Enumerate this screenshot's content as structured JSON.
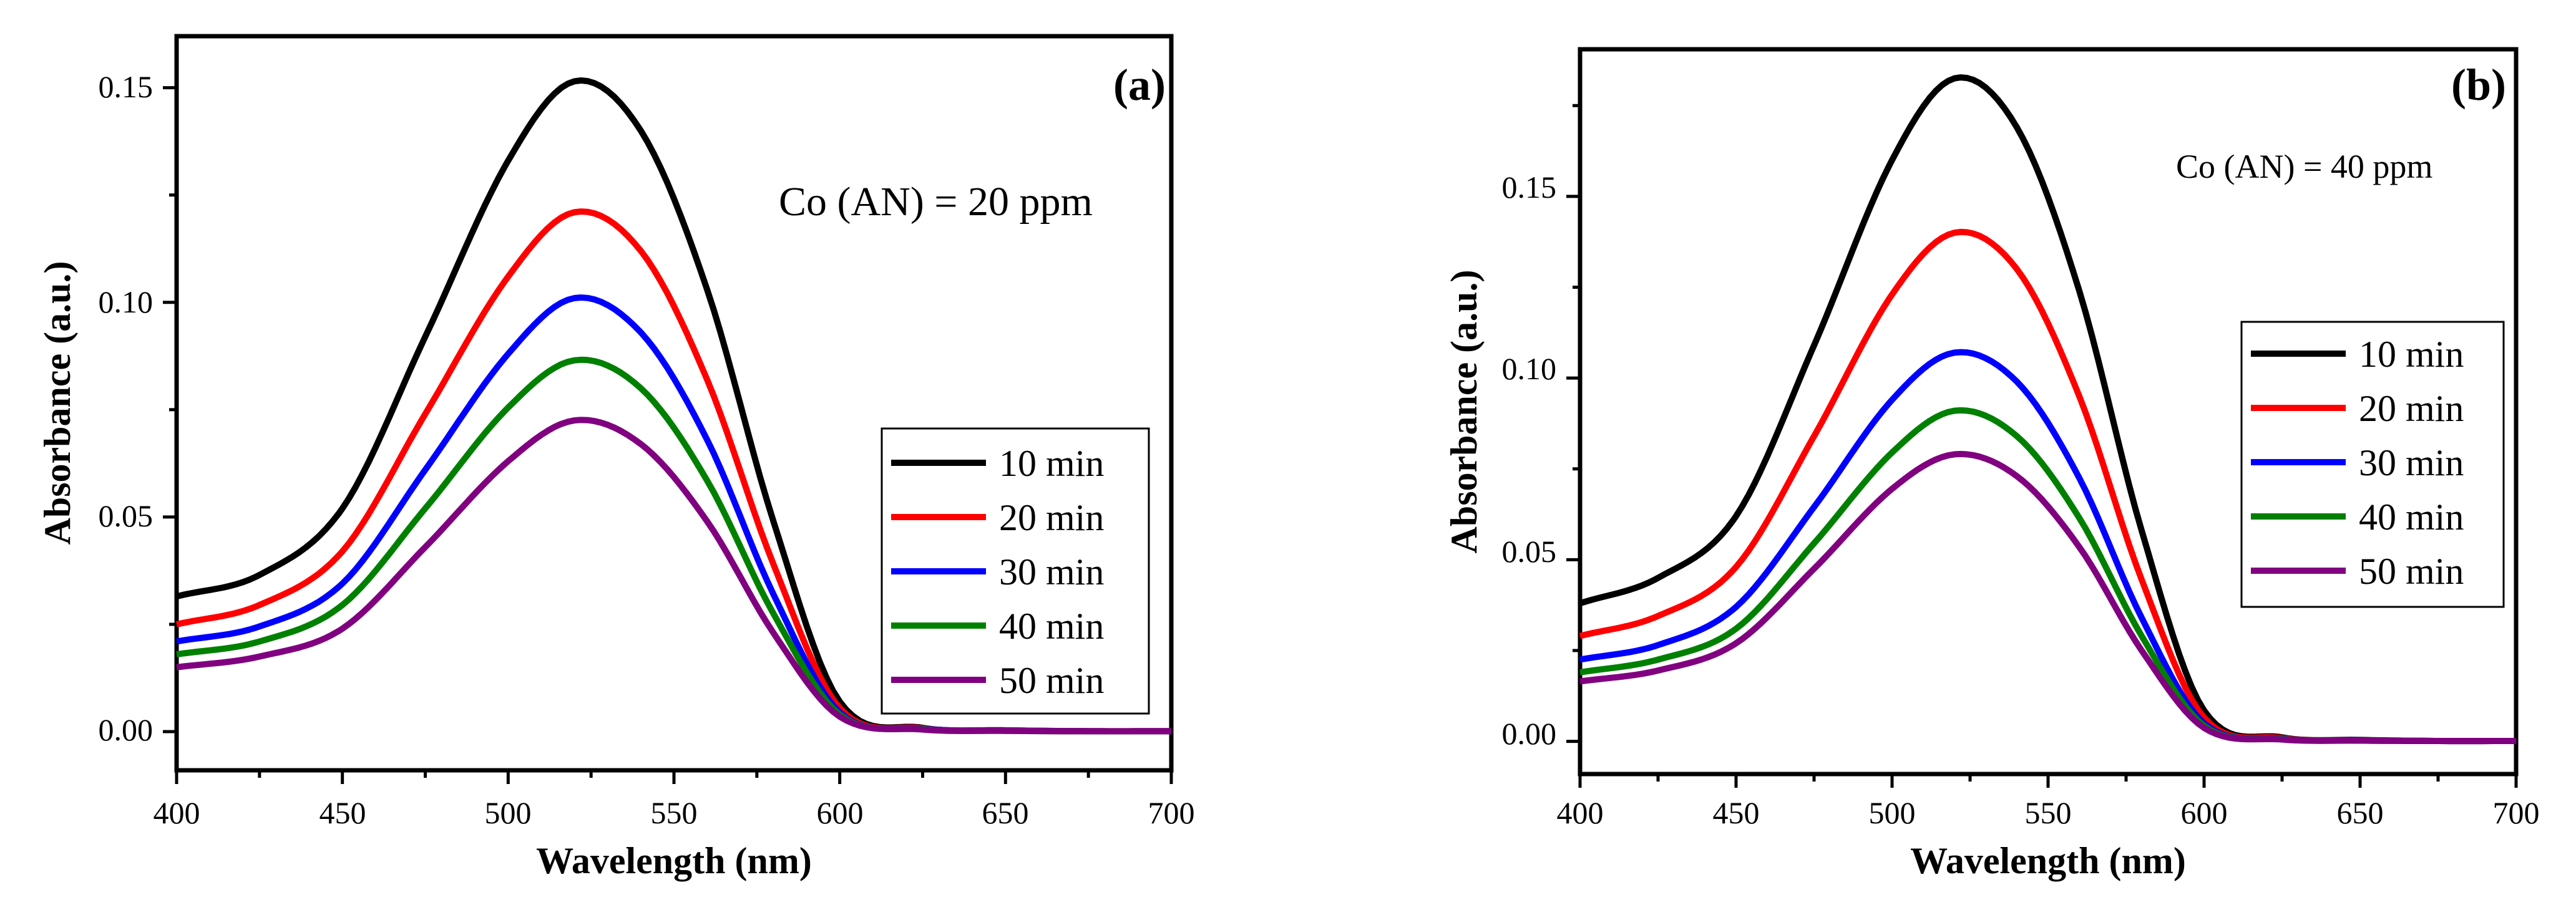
{
  "chart_data": [
    {
      "type": "line",
      "panel_label": "(a)",
      "annotation": "Co (AN) = 20 ppm",
      "xlabel": "Wavelength (nm)",
      "ylabel": "Absorbance (a.u.)",
      "xlim": [
        400,
        700
      ],
      "ylim": [
        -0.009,
        0.162
      ],
      "xticks": [
        "400",
        "450",
        "500",
        "550",
        "600",
        "650",
        "700"
      ],
      "yticks": [
        "0.00",
        "0.05",
        "0.10",
        "0.15"
      ],
      "legend_position": "right",
      "x": [
        400,
        425,
        450,
        475,
        500,
        520,
        540,
        560,
        580,
        600,
        625,
        650,
        675,
        700
      ],
      "series": [
        {
          "name": "10 min",
          "color": "#000000",
          "values": [
            0.0315,
            0.0365,
            0.052,
            0.092,
            0.133,
            0.1515,
            0.14,
            0.103,
            0.049,
            0.007,
            0.0009,
            0.0003,
            0.0001,
            0.0001
          ]
        },
        {
          "name": "20 min",
          "color": "#ff0000",
          "values": [
            0.025,
            0.0295,
            0.042,
            0.074,
            0.106,
            0.121,
            0.112,
            0.082,
            0.039,
            0.0055,
            0.0008,
            0.0003,
            0.0001,
            0.0001
          ]
        },
        {
          "name": "30 min",
          "color": "#0000ff",
          "values": [
            0.021,
            0.0245,
            0.0345,
            0.061,
            0.088,
            0.101,
            0.093,
            0.068,
            0.032,
            0.0045,
            0.0007,
            0.0003,
            0.0001,
            0.0001
          ]
        },
        {
          "name": "40 min",
          "color": "#008000",
          "values": [
            0.018,
            0.021,
            0.0295,
            0.052,
            0.0755,
            0.0865,
            0.08,
            0.0585,
            0.0275,
            0.004,
            0.0006,
            0.0002,
            0.0001,
            0.0001
          ]
        },
        {
          "name": "50 min",
          "color": "#800080",
          "values": [
            0.015,
            0.0175,
            0.024,
            0.043,
            0.063,
            0.0725,
            0.067,
            0.049,
            0.023,
            0.0035,
            0.0005,
            0.0002,
            0.0001,
            0.0001
          ]
        }
      ]
    },
    {
      "type": "line",
      "panel_label": "(b)",
      "annotation": "Co (AN) = 40 ppm",
      "xlabel": "Wavelength (nm)",
      "ylabel": "Absorbance (a.u.)",
      "xlim": [
        400,
        700
      ],
      "ylim": [
        -0.009,
        0.1905
      ],
      "xticks": [
        "400",
        "450",
        "500",
        "550",
        "600",
        "650",
        "700"
      ],
      "yticks": [
        "0.00",
        "0.05",
        "0.10",
        "0.15"
      ],
      "legend_position": "right",
      "x": [
        400,
        425,
        450,
        475,
        500,
        520,
        540,
        560,
        580,
        600,
        625,
        650,
        675,
        700
      ],
      "series": [
        {
          "name": "10 min",
          "color": "#000000",
          "values": [
            0.038,
            0.045,
            0.062,
            0.109,
            0.16,
            0.1825,
            0.169,
            0.124,
            0.058,
            0.0085,
            0.0011,
            0.0004,
            0.0001,
            0.0001
          ]
        },
        {
          "name": "20 min",
          "color": "#ff0000",
          "values": [
            0.029,
            0.0345,
            0.048,
            0.084,
            0.123,
            0.14,
            0.13,
            0.095,
            0.0445,
            0.0065,
            0.0009,
            0.0003,
            0.0001,
            0.0001
          ]
        },
        {
          "name": "30 min",
          "color": "#0000ff",
          "values": [
            0.0225,
            0.0265,
            0.037,
            0.0645,
            0.094,
            0.107,
            0.099,
            0.0725,
            0.034,
            0.005,
            0.0007,
            0.0003,
            0.0001,
            0.0001
          ]
        },
        {
          "name": "40 min",
          "color": "#008000",
          "values": [
            0.019,
            0.0225,
            0.031,
            0.0545,
            0.0795,
            0.091,
            0.084,
            0.0615,
            0.029,
            0.0043,
            0.0006,
            0.0002,
            0.0001,
            0.0001
          ]
        },
        {
          "name": "50 min",
          "color": "#800080",
          "values": [
            0.0165,
            0.0195,
            0.027,
            0.0475,
            0.0695,
            0.079,
            0.073,
            0.0535,
            0.025,
            0.0037,
            0.0005,
            0.0002,
            0.0001,
            0.0001
          ]
        }
      ]
    }
  ]
}
